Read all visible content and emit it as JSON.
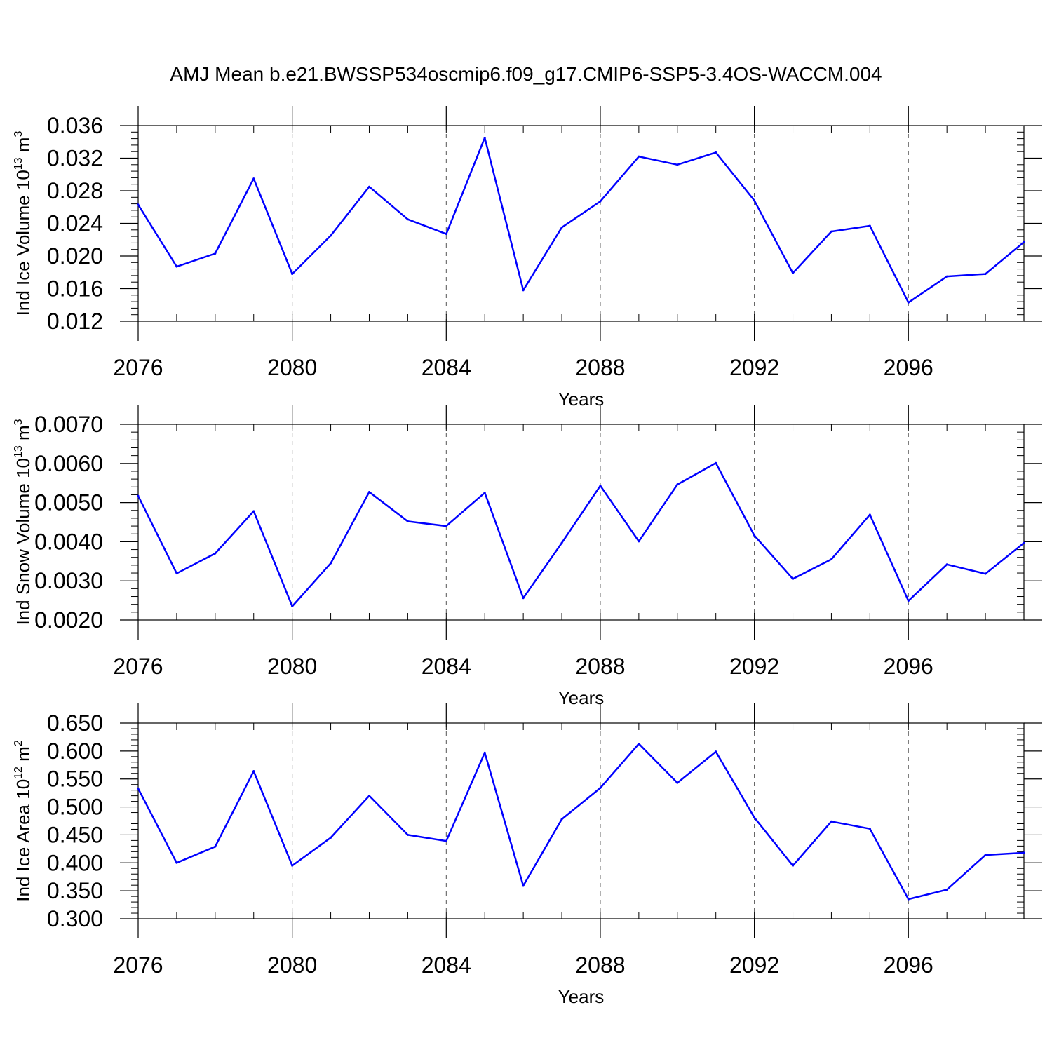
{
  "figure": {
    "title": "AMJ Mean b.e21.BWSSP534oscmip6.f09_g17.CMIP6-SSP5-3.4OS-WACCM.004"
  },
  "colors": {
    "line": "#0000ff",
    "axis": "#000000",
    "grid": "#555555"
  },
  "chart_data": [
    {
      "type": "line",
      "ylabel": "Ind Ice Volume 10",
      "ylabel_exp": "13",
      "ylabel_unit": "m",
      "ylabel_unit_exp": "3",
      "xlabel": "Years",
      "xlim": [
        2076,
        2099
      ],
      "ylim": [
        0.012,
        0.036
      ],
      "yticks": [
        0.012,
        0.016,
        0.02,
        0.024,
        0.028,
        0.032,
        0.036
      ],
      "yticklabels": [
        "0.012",
        "0.016",
        "0.020",
        "0.024",
        "0.028",
        "0.032",
        "0.036"
      ],
      "xticks": [
        2076,
        2080,
        2084,
        2088,
        2092,
        2096
      ],
      "xticklabels": [
        "2076",
        "2080",
        "2084",
        "2088",
        "2092",
        "2096"
      ],
      "x": [
        2076,
        2077,
        2078,
        2079,
        2080,
        2081,
        2082,
        2083,
        2084,
        2085,
        2086,
        2087,
        2088,
        2089,
        2090,
        2091,
        2092,
        2093,
        2094,
        2095,
        2096,
        2097,
        2098,
        2099
      ],
      "values": [
        0.0263,
        0.0187,
        0.0203,
        0.0295,
        0.0178,
        0.0225,
        0.0285,
        0.0245,
        0.0227,
        0.0345,
        0.0158,
        0.0235,
        0.0267,
        0.0322,
        0.0312,
        0.0327,
        0.0268,
        0.0179,
        0.023,
        0.0237,
        0.0143,
        0.0175,
        0.0178,
        0.0217
      ]
    },
    {
      "type": "line",
      "ylabel": "Ind Snow Volume 10",
      "ylabel_exp": "13",
      "ylabel_unit": "m",
      "ylabel_unit_exp": "3",
      "xlabel": "Years",
      "xlim": [
        2076,
        2099
      ],
      "ylim": [
        0.002,
        0.007
      ],
      "yticks": [
        0.002,
        0.003,
        0.004,
        0.005,
        0.006,
        0.007
      ],
      "yticklabels": [
        "0.0020",
        "0.0030",
        "0.0040",
        "0.0050",
        "0.0060",
        "0.0070"
      ],
      "xticks": [
        2076,
        2080,
        2084,
        2088,
        2092,
        2096
      ],
      "xticklabels": [
        "2076",
        "2080",
        "2084",
        "2088",
        "2092",
        "2096"
      ],
      "x": [
        2076,
        2077,
        2078,
        2079,
        2080,
        2081,
        2082,
        2083,
        2084,
        2085,
        2086,
        2087,
        2088,
        2089,
        2090,
        2091,
        2092,
        2093,
        2094,
        2095,
        2096,
        2097,
        2098,
        2099
      ],
      "values": [
        0.00517,
        0.00319,
        0.0037,
        0.00478,
        0.00235,
        0.00345,
        0.00527,
        0.00452,
        0.0044,
        0.00525,
        0.00256,
        0.00397,
        0.00543,
        0.00401,
        0.00546,
        0.00601,
        0.00416,
        0.00305,
        0.00355,
        0.00469,
        0.00249,
        0.00342,
        0.00318,
        0.00397
      ]
    },
    {
      "type": "line",
      "ylabel": "Ind Ice Area 10",
      "ylabel_exp": "12",
      "ylabel_unit": "m",
      "ylabel_unit_exp": "2",
      "xlabel": "Years",
      "xlim": [
        2076,
        2099
      ],
      "ylim": [
        0.3,
        0.65
      ],
      "yticks": [
        0.3,
        0.35,
        0.4,
        0.45,
        0.5,
        0.55,
        0.6,
        0.65
      ],
      "yticklabels": [
        "0.300",
        "0.350",
        "0.400",
        "0.450",
        "0.500",
        "0.550",
        "0.600",
        "0.650"
      ],
      "xticks": [
        2076,
        2080,
        2084,
        2088,
        2092,
        2096
      ],
      "xticklabels": [
        "2076",
        "2080",
        "2084",
        "2088",
        "2092",
        "2096"
      ],
      "x": [
        2076,
        2077,
        2078,
        2079,
        2080,
        2081,
        2082,
        2083,
        2084,
        2085,
        2086,
        2087,
        2088,
        2089,
        2090,
        2091,
        2092,
        2093,
        2094,
        2095,
        2096,
        2097,
        2098,
        2099
      ],
      "values": [
        0.533,
        0.4,
        0.429,
        0.564,
        0.395,
        0.445,
        0.52,
        0.45,
        0.439,
        0.597,
        0.359,
        0.478,
        0.534,
        0.613,
        0.543,
        0.599,
        0.481,
        0.395,
        0.474,
        0.461,
        0.335,
        0.352,
        0.414,
        0.418
      ]
    }
  ]
}
